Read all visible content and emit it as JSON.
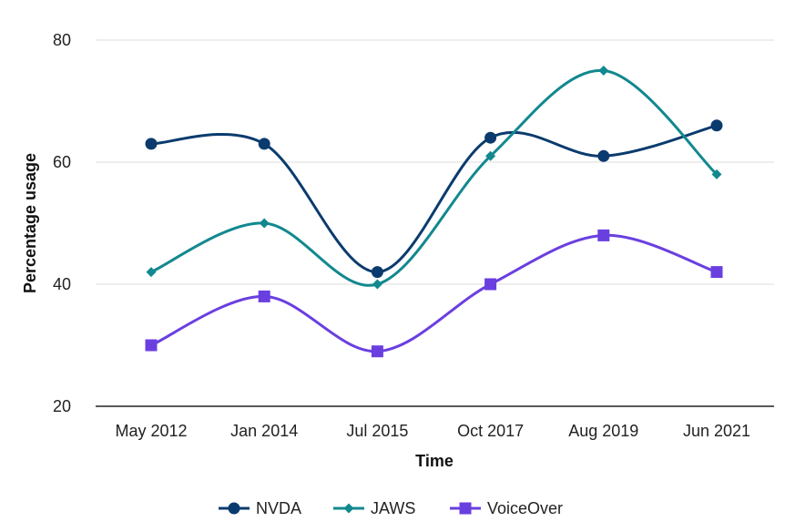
{
  "chart_data": {
    "type": "line",
    "title": "",
    "xlabel": "Time",
    "ylabel": "Percentage usage",
    "categories": [
      "May 2012",
      "Jan 2014",
      "Jul 2015",
      "Oct 2017",
      "Aug 2019",
      "Jun 2021"
    ],
    "ylim": [
      20,
      80
    ],
    "yticks": [
      20,
      40,
      60,
      80
    ],
    "grid": true,
    "legend_position": "bottom",
    "series": [
      {
        "name": "NVDA",
        "values": [
          63,
          63,
          42,
          64,
          61,
          66
        ],
        "color": "#0b3b6e",
        "marker": "circle"
      },
      {
        "name": "JAWS",
        "values": [
          42,
          50,
          40,
          61,
          75,
          58
        ],
        "color": "#12888f",
        "marker": "diamond"
      },
      {
        "name": "VoiceOver",
        "values": [
          30,
          38,
          29,
          40,
          48,
          42
        ],
        "color": "#6a3fe0",
        "marker": "square"
      }
    ]
  }
}
